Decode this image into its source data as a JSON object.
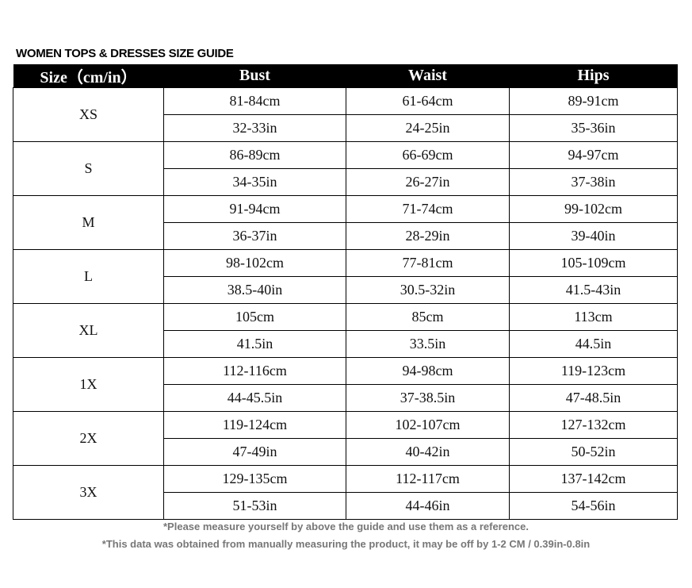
{
  "title": "WOMEN TOPS & DRESSES SIZE GUIDE",
  "headers": [
    "Size（cm/in）",
    "Bust",
    "Waist",
    "Hips"
  ],
  "rows": [
    {
      "size": "XS",
      "cm": [
        "81-84cm",
        "61-64cm",
        "89-91cm"
      ],
      "in": [
        "32-33in",
        "24-25in",
        "35-36in"
      ]
    },
    {
      "size": "S",
      "cm": [
        "86-89cm",
        "66-69cm",
        "94-97cm"
      ],
      "in": [
        "34-35in",
        "26-27in",
        "37-38in"
      ]
    },
    {
      "size": "M",
      "cm": [
        "91-94cm",
        "71-74cm",
        "99-102cm"
      ],
      "in": [
        "36-37in",
        "28-29in",
        "39-40in"
      ]
    },
    {
      "size": "L",
      "cm": [
        "98-102cm",
        "77-81cm",
        "105-109cm"
      ],
      "in": [
        "38.5-40in",
        "30.5-32in",
        "41.5-43in"
      ]
    },
    {
      "size": "XL",
      "cm": [
        "105cm",
        "85cm",
        "113cm"
      ],
      "in": [
        "41.5in",
        "33.5in",
        "44.5in"
      ]
    },
    {
      "size": "1X",
      "cm": [
        "112-116cm",
        "94-98cm",
        "119-123cm"
      ],
      "in": [
        "44-45.5in",
        "37-38.5in",
        "47-48.5in"
      ]
    },
    {
      "size": "2X",
      "cm": [
        "119-124cm",
        "102-107cm",
        "127-132cm"
      ],
      "in": [
        "47-49in",
        "40-42in",
        "50-52in"
      ]
    },
    {
      "size": "3X",
      "cm": [
        "129-135cm",
        "112-117cm",
        "137-142cm"
      ],
      "in": [
        "51-53in",
        "44-46in",
        "54-56in"
      ]
    }
  ],
  "notes": [
    "*Please measure yourself by above the guide and use them as a reference.",
    "*This data was obtained from manually measuring the product, it may be off by 1-2 CM / 0.39in-0.8in"
  ]
}
